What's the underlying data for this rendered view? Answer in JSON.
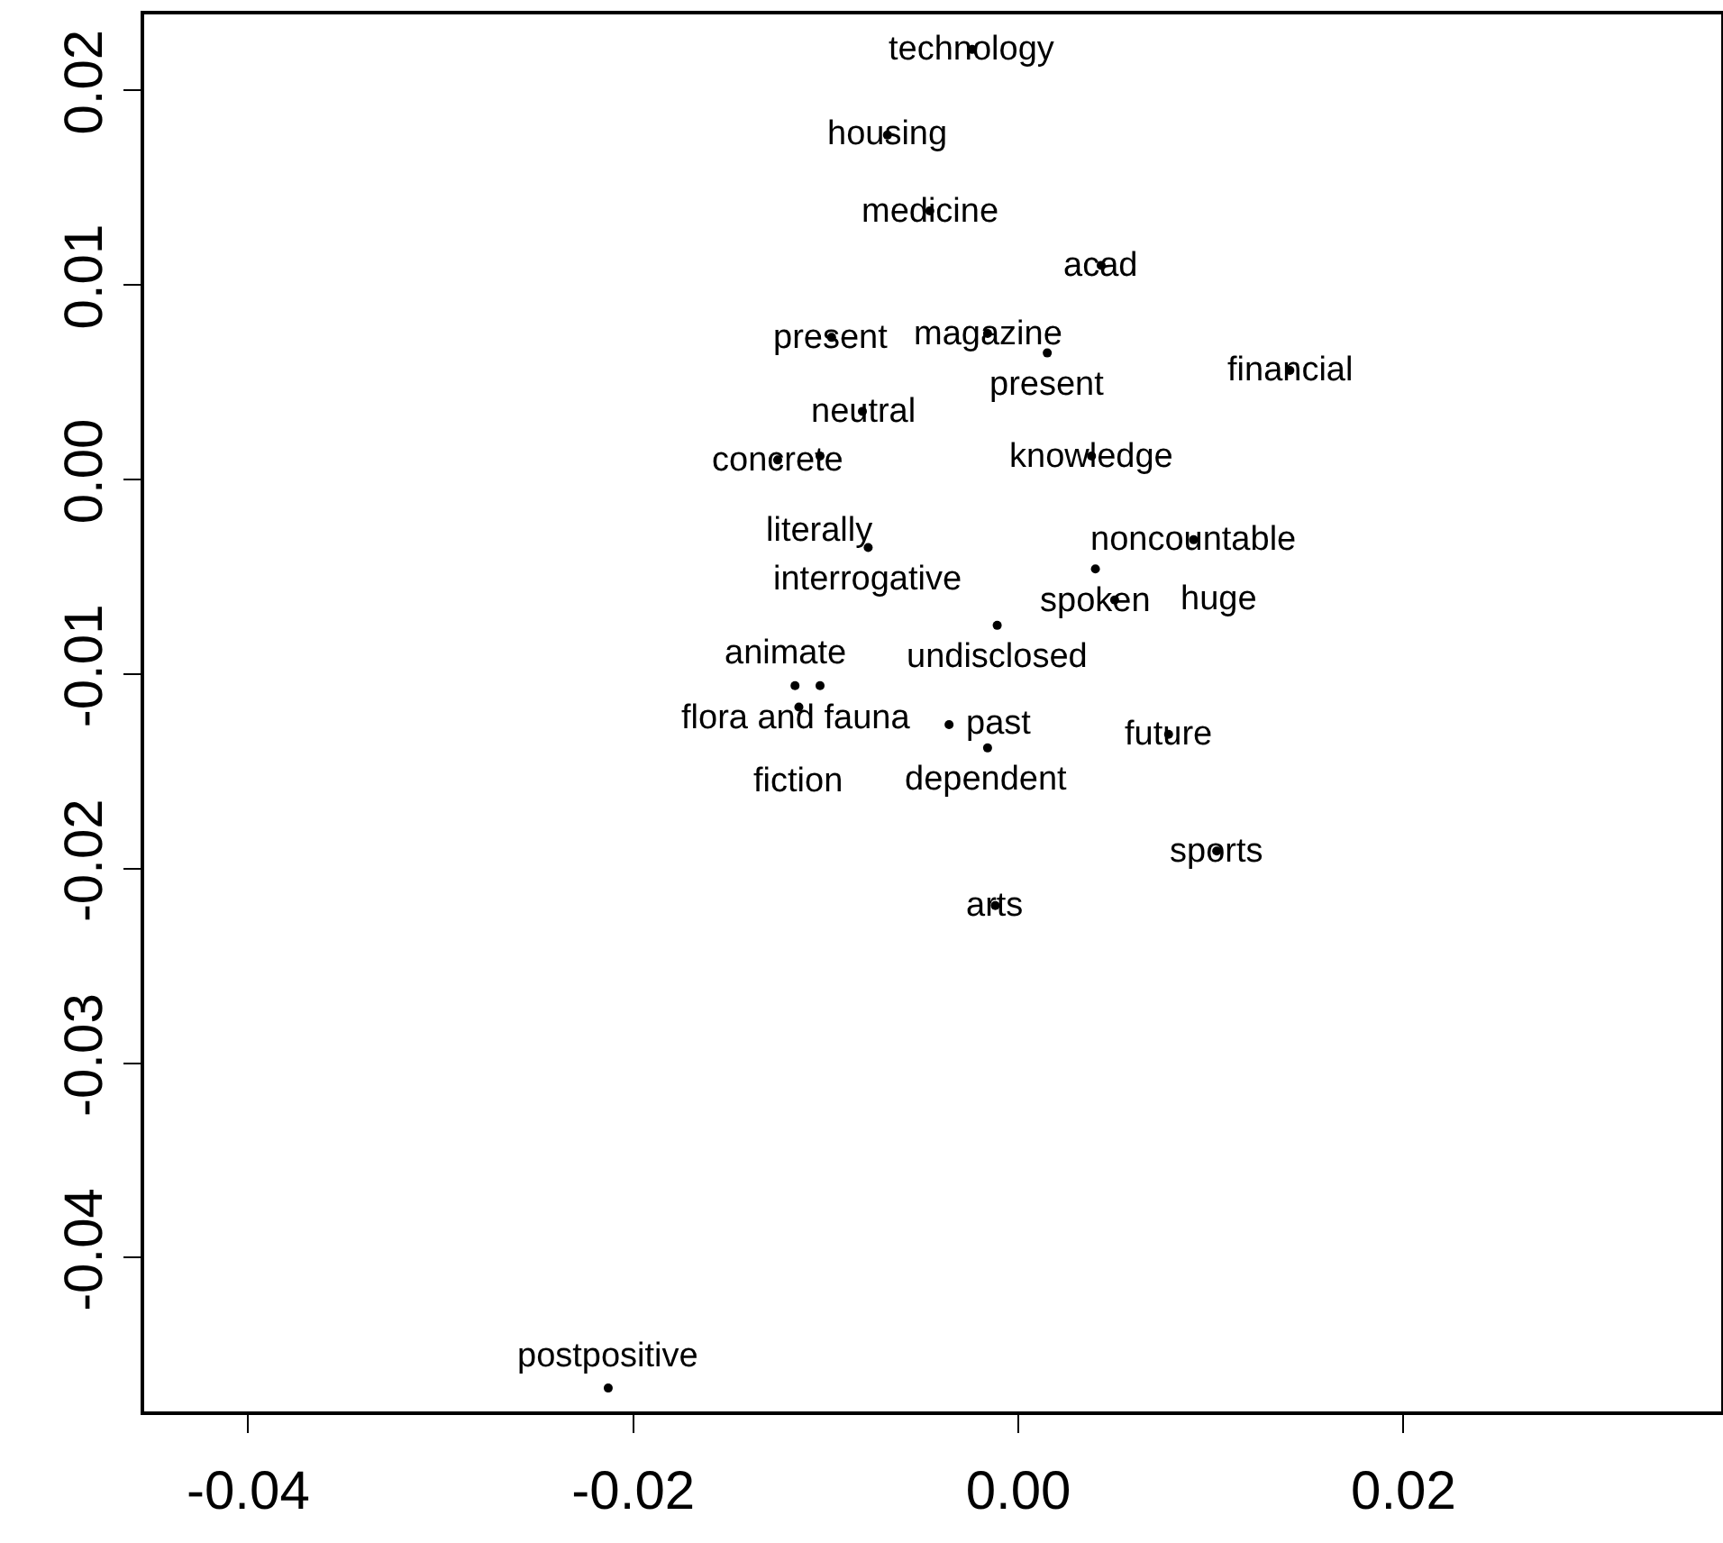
{
  "chart_data": {
    "type": "scatter",
    "marker": "circle",
    "grid": false,
    "x": [
      -0.0024,
      -0.0068,
      -0.0046,
      0.0043,
      0.0141,
      -0.0097,
      -0.0016,
      0.0015,
      -0.0081,
      -0.0125,
      -0.0103,
      0.0038,
      -0.0078,
      0.0091,
      0.004,
      0.005,
      -0.0011,
      -0.0116,
      -0.0103,
      -0.0114,
      -0.0036,
      -0.0016,
      0.0078,
      0.0103,
      -0.0012,
      -0.0213
    ],
    "values": [
      0.0221,
      0.0177,
      0.0138,
      0.011,
      0.0056,
      0.0073,
      0.0075,
      0.0065,
      0.0035,
      0.001,
      0.0012,
      0.0012,
      -0.0035,
      -0.0031,
      -0.0046,
      -0.0062,
      -0.0075,
      -0.0106,
      -0.0106,
      -0.0117,
      -0.0126,
      -0.0138,
      -0.0131,
      -0.0191,
      -0.0219,
      -0.0467
    ],
    "value_labels": [
      "technology",
      "housing",
      "medicine",
      "acad",
      "financial",
      "present",
      "magazine",
      "present",
      "neutral",
      "concrete",
      "literally",
      "knowledge",
      "interrogative",
      "noncountable",
      "spoken",
      "huge",
      "undisclosed",
      "flora and fauna",
      "animate",
      "fiction",
      "past",
      "dependent",
      "future",
      "sports",
      "arts",
      "postpositive"
    ],
    "xlim": [
      -0.0454,
      0.0365
    ],
    "xticks": [
      -0.04,
      -0.02,
      {
        "value": 0,
        "label": "0.00"
      },
      0.02
    ],
    "ylim": [
      -0.0479,
      0.0239
    ],
    "yticks": [
      -0.04,
      -0.03,
      -0.02,
      -0.01,
      {
        "value": 0,
        "label": "0.00"
      },
      0.01,
      0.02
    ]
  }
}
